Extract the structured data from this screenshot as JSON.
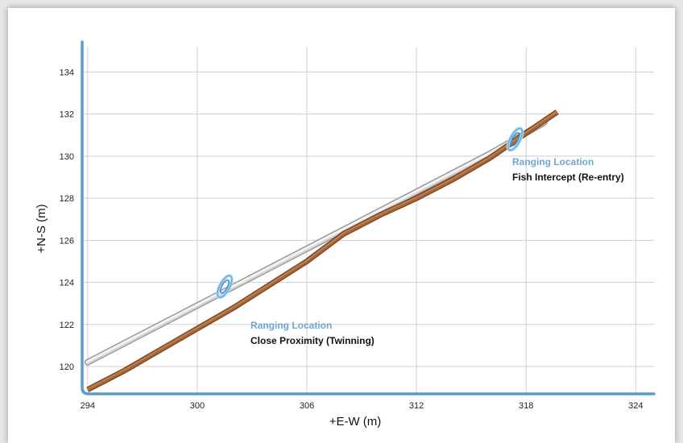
{
  "chart_data": {
    "type": "line",
    "xlabel": "+E-W (m)",
    "ylabel": "+N-S (m)",
    "xlim": [
      293.7,
      325
    ],
    "ylim": [
      118.7,
      135.2
    ],
    "x_ticks": [
      294,
      300,
      306,
      312,
      318,
      324
    ],
    "y_ticks": [
      120,
      122,
      124,
      126,
      128,
      130,
      132,
      134
    ],
    "grid": true,
    "legend": "none",
    "colors": {
      "axis": "#5b9dc9",
      "grid": "#cfcfcf",
      "existing_well": "#c8c8c8",
      "relief_well": "#a5673a",
      "ranging_tool": "#6fb2e2"
    },
    "series": [
      {
        "x": [
          294,
          300,
          306,
          312,
          316,
          319
        ],
        "y": [
          120.2,
          122.9,
          125.6,
          128.3,
          130.1,
          131.6
        ]
      },
      {
        "x": [
          294,
          296,
          298,
          300,
          302,
          304,
          306,
          308,
          310,
          312,
          314,
          316,
          318,
          319.7
        ],
        "y": [
          118.9,
          119.8,
          120.8,
          121.8,
          122.8,
          123.9,
          125,
          126.3,
          127.2,
          128,
          128.9,
          129.9,
          131.1,
          132.1
        ]
      }
    ],
    "annotations": [
      {
        "heading": "Ranging Location",
        "text": "Close Proximity (Twinning)",
        "x": 301.5,
        "y": 123.8
      },
      {
        "heading": "Ranging Location",
        "text": "Fish Intercept (Re-entry)",
        "x": 317.4,
        "y": 130.8
      }
    ]
  }
}
